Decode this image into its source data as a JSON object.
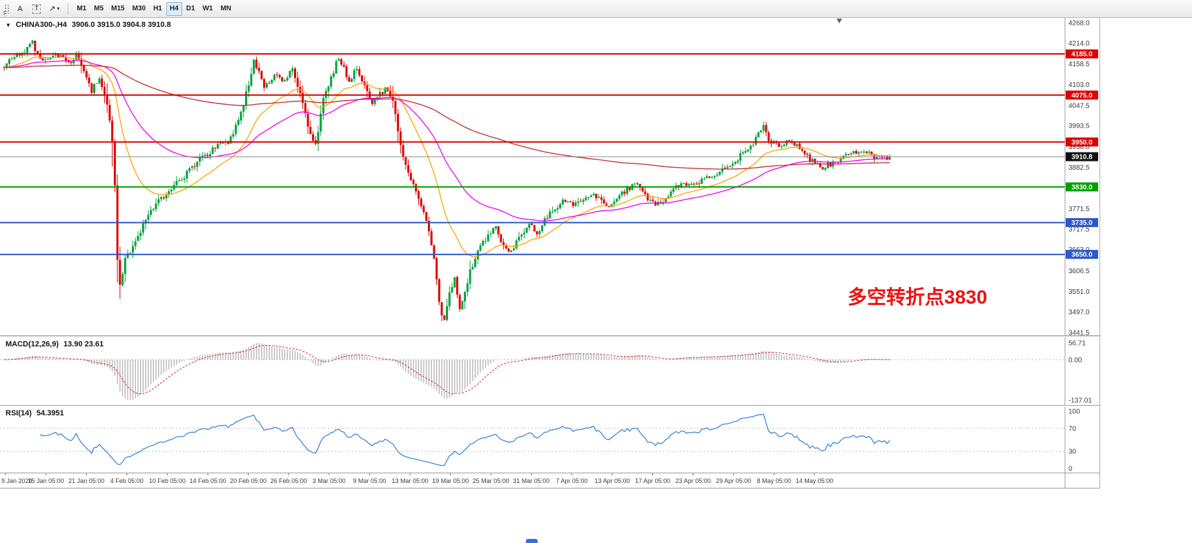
{
  "toolbar": {
    "badge": "F",
    "annotate_button": "A",
    "text_button": "T",
    "draw_button": "↗",
    "draw_caret": "▾",
    "timeframes": [
      {
        "label": "M1",
        "selected": false
      },
      {
        "label": "M5",
        "selected": false
      },
      {
        "label": "M15",
        "selected": false
      },
      {
        "label": "M30",
        "selected": false
      },
      {
        "label": "H1",
        "selected": false
      },
      {
        "label": "H4",
        "selected": true
      },
      {
        "label": "D1",
        "selected": false
      },
      {
        "label": "W1",
        "selected": false
      },
      {
        "label": "MN",
        "selected": false
      }
    ],
    "selected_timeframe": "H4"
  },
  "chart_data": [
    {
      "type": "candlestick",
      "symbol": "CHINA300-,H4",
      "ohlc_text": "3906.0 3915.0 3904.8 3910.8",
      "open": 3906.0,
      "high": 3915.0,
      "low": 3904.8,
      "close": 3910.8,
      "annotation": "多空转折点3830",
      "annotation_color": "#ee1111",
      "y_range": [
        3441.5,
        4268.0
      ],
      "y_ticks": [
        4268.0,
        4214.0,
        4158.5,
        4103.0,
        4047.5,
        3993.5,
        3938.0,
        3882.5,
        3827.0,
        3771.5,
        3717.5,
        3663.0,
        3606.5,
        3551.0,
        3497.0,
        3441.5
      ],
      "bars_total": 345,
      "last_price": 3910.8,
      "up_color": "#00a23c",
      "down_color": "#e00000",
      "hlines": [
        {
          "value": 4185.0,
          "color": "#dd0000"
        },
        {
          "value": 4075.0,
          "color": "#dd0000"
        },
        {
          "value": 3950.0,
          "color": "#dd0000"
        },
        {
          "value": 3830.0,
          "color": "#00a000"
        },
        {
          "value": 3735.0,
          "color": "#2d59c8"
        },
        {
          "value": 3650.0,
          "color": "#2d59c8"
        }
      ],
      "price_line": {
        "value": 3910.8,
        "color": "#8a8a8a",
        "flag_bg": "#111111"
      },
      "moving_averages": [
        {
          "period": 24,
          "color": "#ffa200"
        },
        {
          "period": 60,
          "color": "#f000f0"
        },
        {
          "period": 250,
          "color": "#c22b2b"
        }
      ],
      "close_path": [
        [
          0,
          4150
        ],
        [
          4,
          4178
        ],
        [
          8,
          4195
        ],
        [
          11,
          4215
        ],
        [
          14,
          4168
        ],
        [
          18,
          4175
        ],
        [
          22,
          4182
        ],
        [
          26,
          4158
        ],
        [
          28,
          4192
        ],
        [
          31,
          4142
        ],
        [
          34,
          4088
        ],
        [
          37,
          4126
        ],
        [
          40,
          4052
        ],
        [
          42,
          3952
        ],
        [
          43,
          3828
        ],
        [
          44,
          3642
        ],
        [
          45,
          3562
        ],
        [
          47,
          3636
        ],
        [
          51,
          3686
        ],
        [
          55,
          3742
        ],
        [
          60,
          3792
        ],
        [
          66,
          3832
        ],
        [
          71,
          3866
        ],
        [
          76,
          3902
        ],
        [
          82,
          3936
        ],
        [
          87,
          3952
        ],
        [
          91,
          4002
        ],
        [
          93,
          4052
        ],
        [
          97,
          4162
        ],
        [
          101,
          4102
        ],
        [
          105,
          4126
        ],
        [
          109,
          4112
        ],
        [
          112,
          4142
        ],
        [
          116,
          4052
        ],
        [
          118,
          3986
        ],
        [
          121,
          3946
        ],
        [
          124,
          4062
        ],
        [
          126,
          4102
        ],
        [
          130,
          4178
        ],
        [
          134,
          4112
        ],
        [
          137,
          4152
        ],
        [
          141,
          4082
        ],
        [
          143,
          4048
        ],
        [
          146,
          4078
        ],
        [
          149,
          4092
        ],
        [
          151,
          4062
        ],
        [
          153,
          3972
        ],
        [
          155,
          3902
        ],
        [
          158,
          3850
        ],
        [
          161,
          3802
        ],
        [
          163,
          3758
        ],
        [
          165,
          3718
        ],
        [
          167,
          3642
        ],
        [
          169,
          3522
        ],
        [
          171,
          3468
        ],
        [
          173,
          3548
        ],
        [
          175,
          3582
        ],
        [
          177,
          3512
        ],
        [
          179,
          3552
        ],
        [
          181,
          3602
        ],
        [
          183,
          3642
        ],
        [
          186,
          3682
        ],
        [
          188,
          3702
        ],
        [
          191,
          3722
        ],
        [
          193,
          3682
        ],
        [
          196,
          3652
        ],
        [
          199,
          3682
        ],
        [
          201,
          3702
        ],
        [
          204,
          3732
        ],
        [
          207,
          3702
        ],
        [
          209,
          3732
        ],
        [
          213,
          3768
        ],
        [
          217,
          3792
        ],
        [
          221,
          3778
        ],
        [
          225,
          3802
        ],
        [
          229,
          3812
        ],
        [
          233,
          3792
        ],
        [
          235,
          3772
        ],
        [
          238,
          3802
        ],
        [
          242,
          3822
        ],
        [
          246,
          3842
        ],
        [
          250,
          3802
        ],
        [
          253,
          3782
        ],
        [
          257,
          3802
        ],
        [
          260,
          3822
        ],
        [
          264,
          3842
        ],
        [
          268,
          3832
        ],
        [
          272,
          3852
        ],
        [
          276,
          3862
        ],
        [
          280,
          3882
        ],
        [
          284,
          3902
        ],
        [
          288,
          3922
        ],
        [
          292,
          3958
        ],
        [
          295,
          3988
        ],
        [
          297,
          3952
        ],
        [
          301,
          3940
        ],
        [
          305,
          3952
        ],
        [
          309,
          3932
        ],
        [
          313,
          3902
        ],
        [
          317,
          3882
        ],
        [
          321,
          3892
        ],
        [
          325,
          3902
        ],
        [
          329,
          3922
        ],
        [
          333,
          3932
        ],
        [
          336,
          3918
        ],
        [
          340,
          3906
        ],
        [
          344,
          3910.8
        ]
      ],
      "x_labels": [
        "9 Jan 2020",
        "15 Jan 05:00",
        "21 Jan 05:00",
        "4 Feb 05:00",
        "10 Feb 05:00",
        "14 Feb 05:00",
        "20 Feb 05:00",
        "26 Feb 05:00",
        "3 Mar 05:00",
        "9 Mar 05:00",
        "13 Mar 05:00",
        "19 Mar 05:00",
        "25 Mar 05:00",
        "31 Mar 05:00",
        "7 Apr 05:00",
        "13 Apr 05:00",
        "17 Apr 05:00",
        "23 Apr 05:00",
        "29 Apr 05:00",
        "8 May 05:00",
        "14 May 05:00"
      ]
    },
    {
      "type": "macd",
      "label": "MACD(12,26,9)",
      "values_text": "13.90 23.61",
      "macd_value": 13.9,
      "signal_value": 23.61,
      "params": [
        12,
        26,
        9
      ],
      "y_ticks": [
        56.71,
        0.0,
        -137.01
      ],
      "range": [
        -137.01,
        56.71
      ],
      "histogram_color": "#b6b6b6",
      "signal_color": "#d43030"
    },
    {
      "type": "line",
      "label": "RSI(14)",
      "value_text": "54.3951",
      "value": 54.3951,
      "period": 14,
      "levels": [
        70,
        30
      ],
      "y_ticks": [
        100,
        70,
        30,
        0
      ],
      "range": [
        0,
        100
      ],
      "line_color": "#2f7ed8"
    }
  ]
}
